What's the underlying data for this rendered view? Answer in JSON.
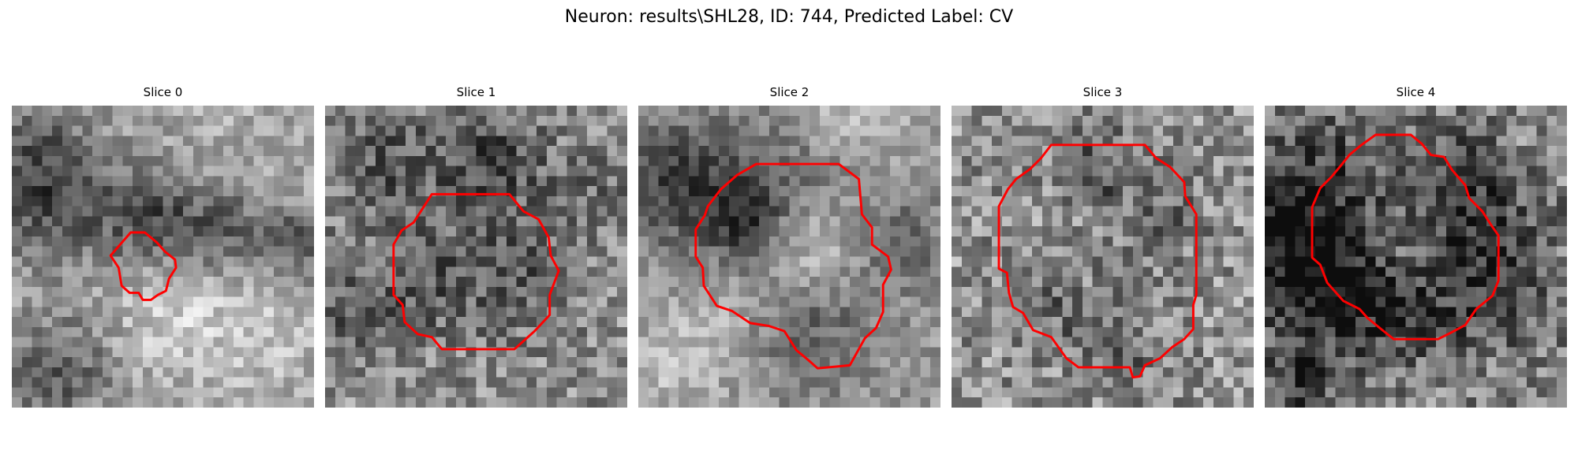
{
  "figure": {
    "title": "Neuron: results\\SHL28, ID: 744, Predicted Label: CV"
  },
  "colors": {
    "contour": "#ff0000",
    "background": "#ffffff",
    "colormap": "grayscale"
  },
  "grid_size": 30,
  "slices": [
    {
      "title": "Slice 0",
      "contour_size": "small",
      "contour_color": "#ff0000"
    },
    {
      "title": "Slice 1",
      "contour_size": "medium",
      "contour_color": "#ff0000"
    },
    {
      "title": "Slice 2",
      "contour_size": "large",
      "contour_color": "#ff0000"
    },
    {
      "title": "Slice 3",
      "contour_size": "large",
      "contour_color": "#ff0000"
    },
    {
      "title": "Slice 4",
      "contour_size": "large",
      "contour_color": "#ff0000"
    }
  ]
}
